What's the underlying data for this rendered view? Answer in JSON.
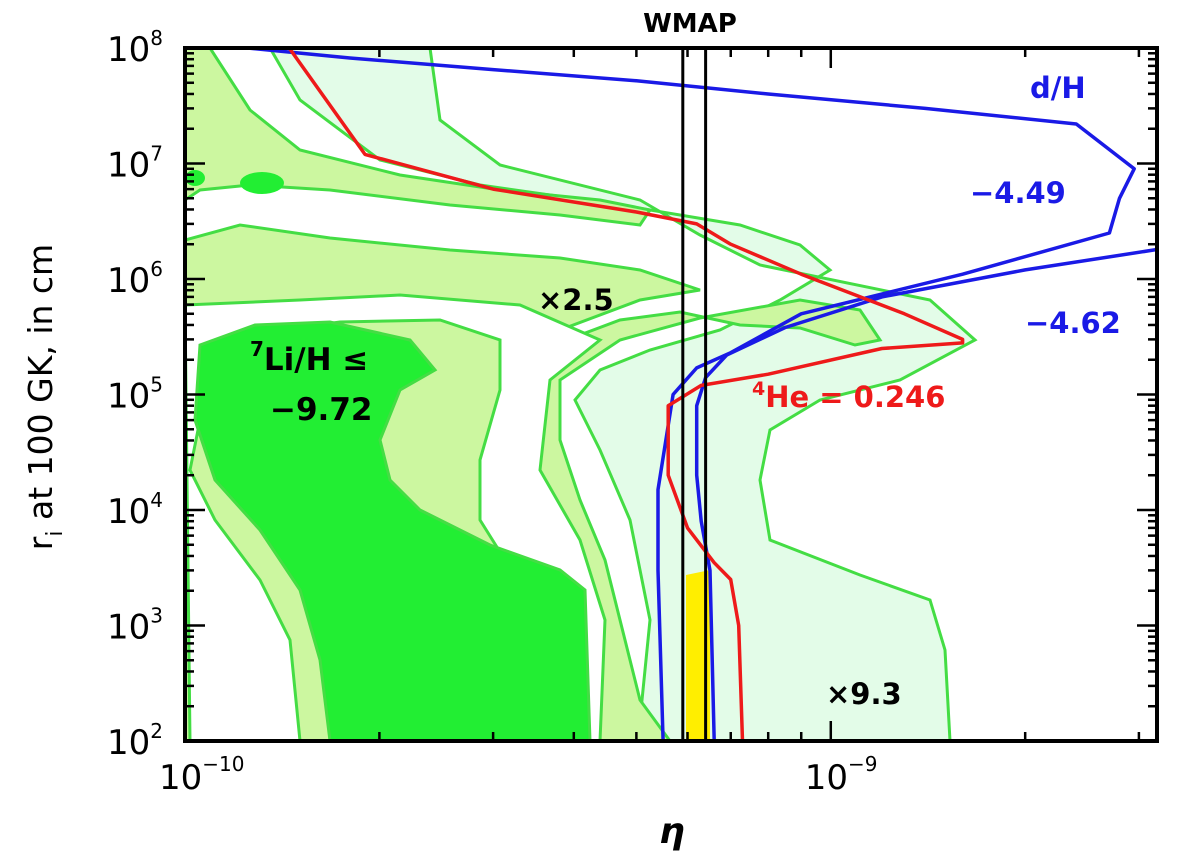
{
  "chart_data": {
    "type": "contour",
    "title": "WMAP",
    "xlabel": "η",
    "ylabel_main": "r",
    "ylabel_sub": "i",
    "ylabel_rest": " at 100 GK, in cm",
    "xscale": "log",
    "yscale": "log",
    "xlim": [
      1e-10,
      3.2e-09
    ],
    "ylim": [
      100,
      100000000
    ],
    "x_ticks": [
      {
        "value": 1e-10,
        "base": "10",
        "exp": "−10"
      },
      {
        "value": 1e-09,
        "base": "10",
        "exp": "−9"
      }
    ],
    "y_ticks": [
      {
        "value": 100,
        "base": "10",
        "exp": "2"
      },
      {
        "value": 1000,
        "base": "10",
        "exp": "3"
      },
      {
        "value": 10000,
        "base": "10",
        "exp": "4"
      },
      {
        "value": 100000,
        "base": "10",
        "exp": "5"
      },
      {
        "value": 1000000,
        "base": "10",
        "exp": "6"
      },
      {
        "value": 10000000,
        "base": "10",
        "exp": "7"
      },
      {
        "value": 100000000,
        "base": "10",
        "exp": "8"
      }
    ],
    "wmap_band": [
      5.9e-10,
      6.4e-10
    ],
    "colors": {
      "li_dark": "#22ee33",
      "li_light": "#ccf7a0",
      "li_pale": "#e3fce8",
      "li_line": "#44dd44",
      "dh": "#1a1ae6",
      "he": "#ee1a1a",
      "overlap": "#ffee00"
    },
    "annotations": {
      "li_prefix": "7",
      "li_line1": "Li/H ≤",
      "li_line2": "−9.72",
      "li_x25": "×2.5",
      "li_x93": "×9.3",
      "dh_title": "d/H",
      "dh_low": "−4.49",
      "dh_high": "−4.62",
      "he_prefix": "4",
      "he_text": "He = 0.246"
    },
    "series": [
      {
        "name": "d/H",
        "level": "−4.49",
        "x": [
          1.25e-10,
          1.8e-10,
          3e-10,
          5e-10,
          8e-10,
          1.4e-09,
          2.4e-09,
          2.95e-09,
          2.8e-09,
          2.7e-09,
          1.6e-09,
          9e-10,
          7e-10,
          6.2e-10,
          5.7e-10,
          5.4e-10,
          5.4e-10,
          5.5e-10
        ],
        "y": [
          100000000,
          82000000,
          65000000,
          52000000,
          40000000,
          30000000,
          22000000,
          9000000,
          5000000,
          2500000,
          1100000,
          500000,
          230000,
          170000,
          100000,
          15000,
          3000,
          100
        ]
      },
      {
        "name": "d/H",
        "level": "−4.62",
        "x": [
          3.2e-09,
          2e-09,
          1.2e-09,
          8.5e-10,
          6.9e-10,
          6.4e-10,
          6.2e-10,
          6.2e-10,
          6.3e-10,
          6.5e-10,
          6.6e-10
        ],
        "y": [
          1800000,
          1200000,
          700000,
          380000,
          220000,
          140000,
          80000,
          20000,
          8000,
          3000,
          100
        ]
      },
      {
        "name": "4He",
        "level": "0.246",
        "x": [
          1.45e-10,
          1.9e-10,
          3e-10,
          5e-10,
          6.2e-10,
          7e-10,
          9e-10,
          1.3e-09,
          1.6e-09,
          1.6e-09,
          1.2e-09,
          8e-10,
          6.3e-10,
          5.6e-10,
          5.6e-10,
          6e-10,
          6.6e-10,
          7e-10,
          7.2e-10,
          7.3e-10
        ],
        "y": [
          100000000,
          12000000,
          6000000,
          3800000,
          3000000,
          2000000,
          1100000,
          500000,
          300000,
          280000,
          250000,
          150000,
          120000,
          80000,
          20000,
          7000,
          3500,
          2500,
          1000,
          100
        ]
      }
    ]
  }
}
